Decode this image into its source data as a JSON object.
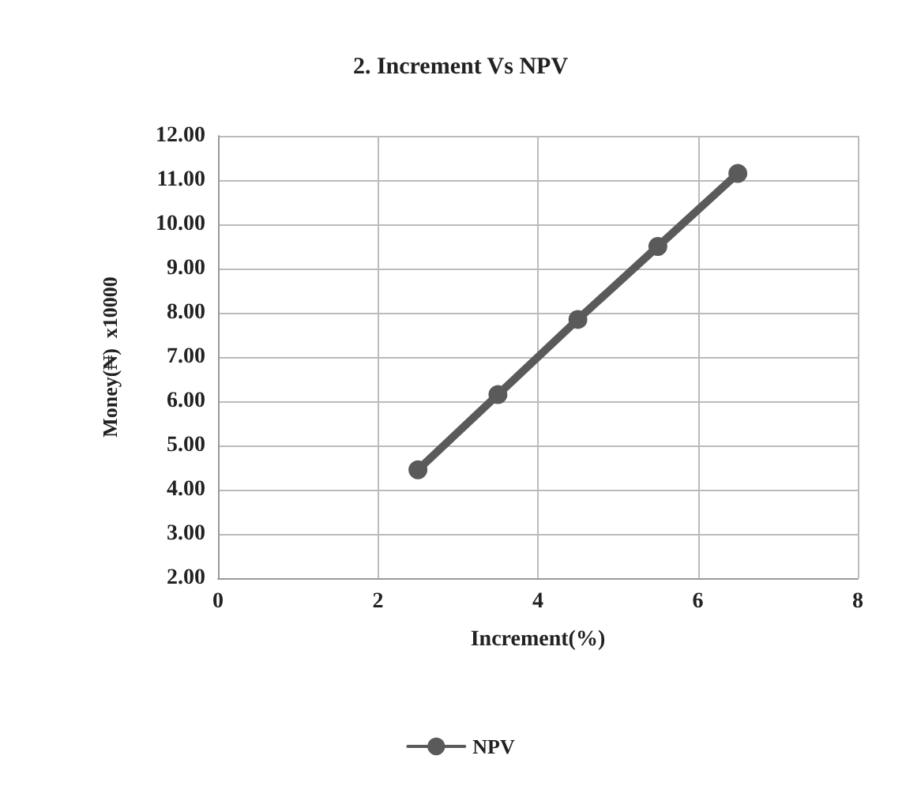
{
  "chart_data": {
    "type": "line",
    "title": "2. Increment Vs NPV",
    "xlabel": "Increment(%)",
    "ylabel": "Money(₦)  x10000",
    "x": [
      2.5,
      3.5,
      4.5,
      5.5,
      6.5
    ],
    "series": [
      {
        "name": "NPV",
        "color": "#5a5a5a",
        "values": [
          4.45,
          6.15,
          7.85,
          9.5,
          11.15
        ]
      }
    ],
    "xlim": [
      0,
      8
    ],
    "xticks": [
      0,
      2,
      4,
      6,
      8
    ],
    "ylim": [
      2,
      12
    ],
    "yticks": [
      {
        "value": 2,
        "label": "2.00"
      },
      {
        "value": 3,
        "label": "3.00"
      },
      {
        "value": 4,
        "label": "4.00"
      },
      {
        "value": 5,
        "label": "5.00"
      },
      {
        "value": 6,
        "label": "6.00"
      },
      {
        "value": 7,
        "label": "7.00"
      },
      {
        "value": 8,
        "label": "8.00"
      },
      {
        "value": 9,
        "label": "9.00"
      },
      {
        "value": 10,
        "label": "10.00"
      },
      {
        "value": 11,
        "label": "11.00"
      },
      {
        "value": 12,
        "label": "12.00"
      }
    ],
    "grid": true,
    "legend": "bottom",
    "marker": "circle",
    "line_style": "solid"
  }
}
